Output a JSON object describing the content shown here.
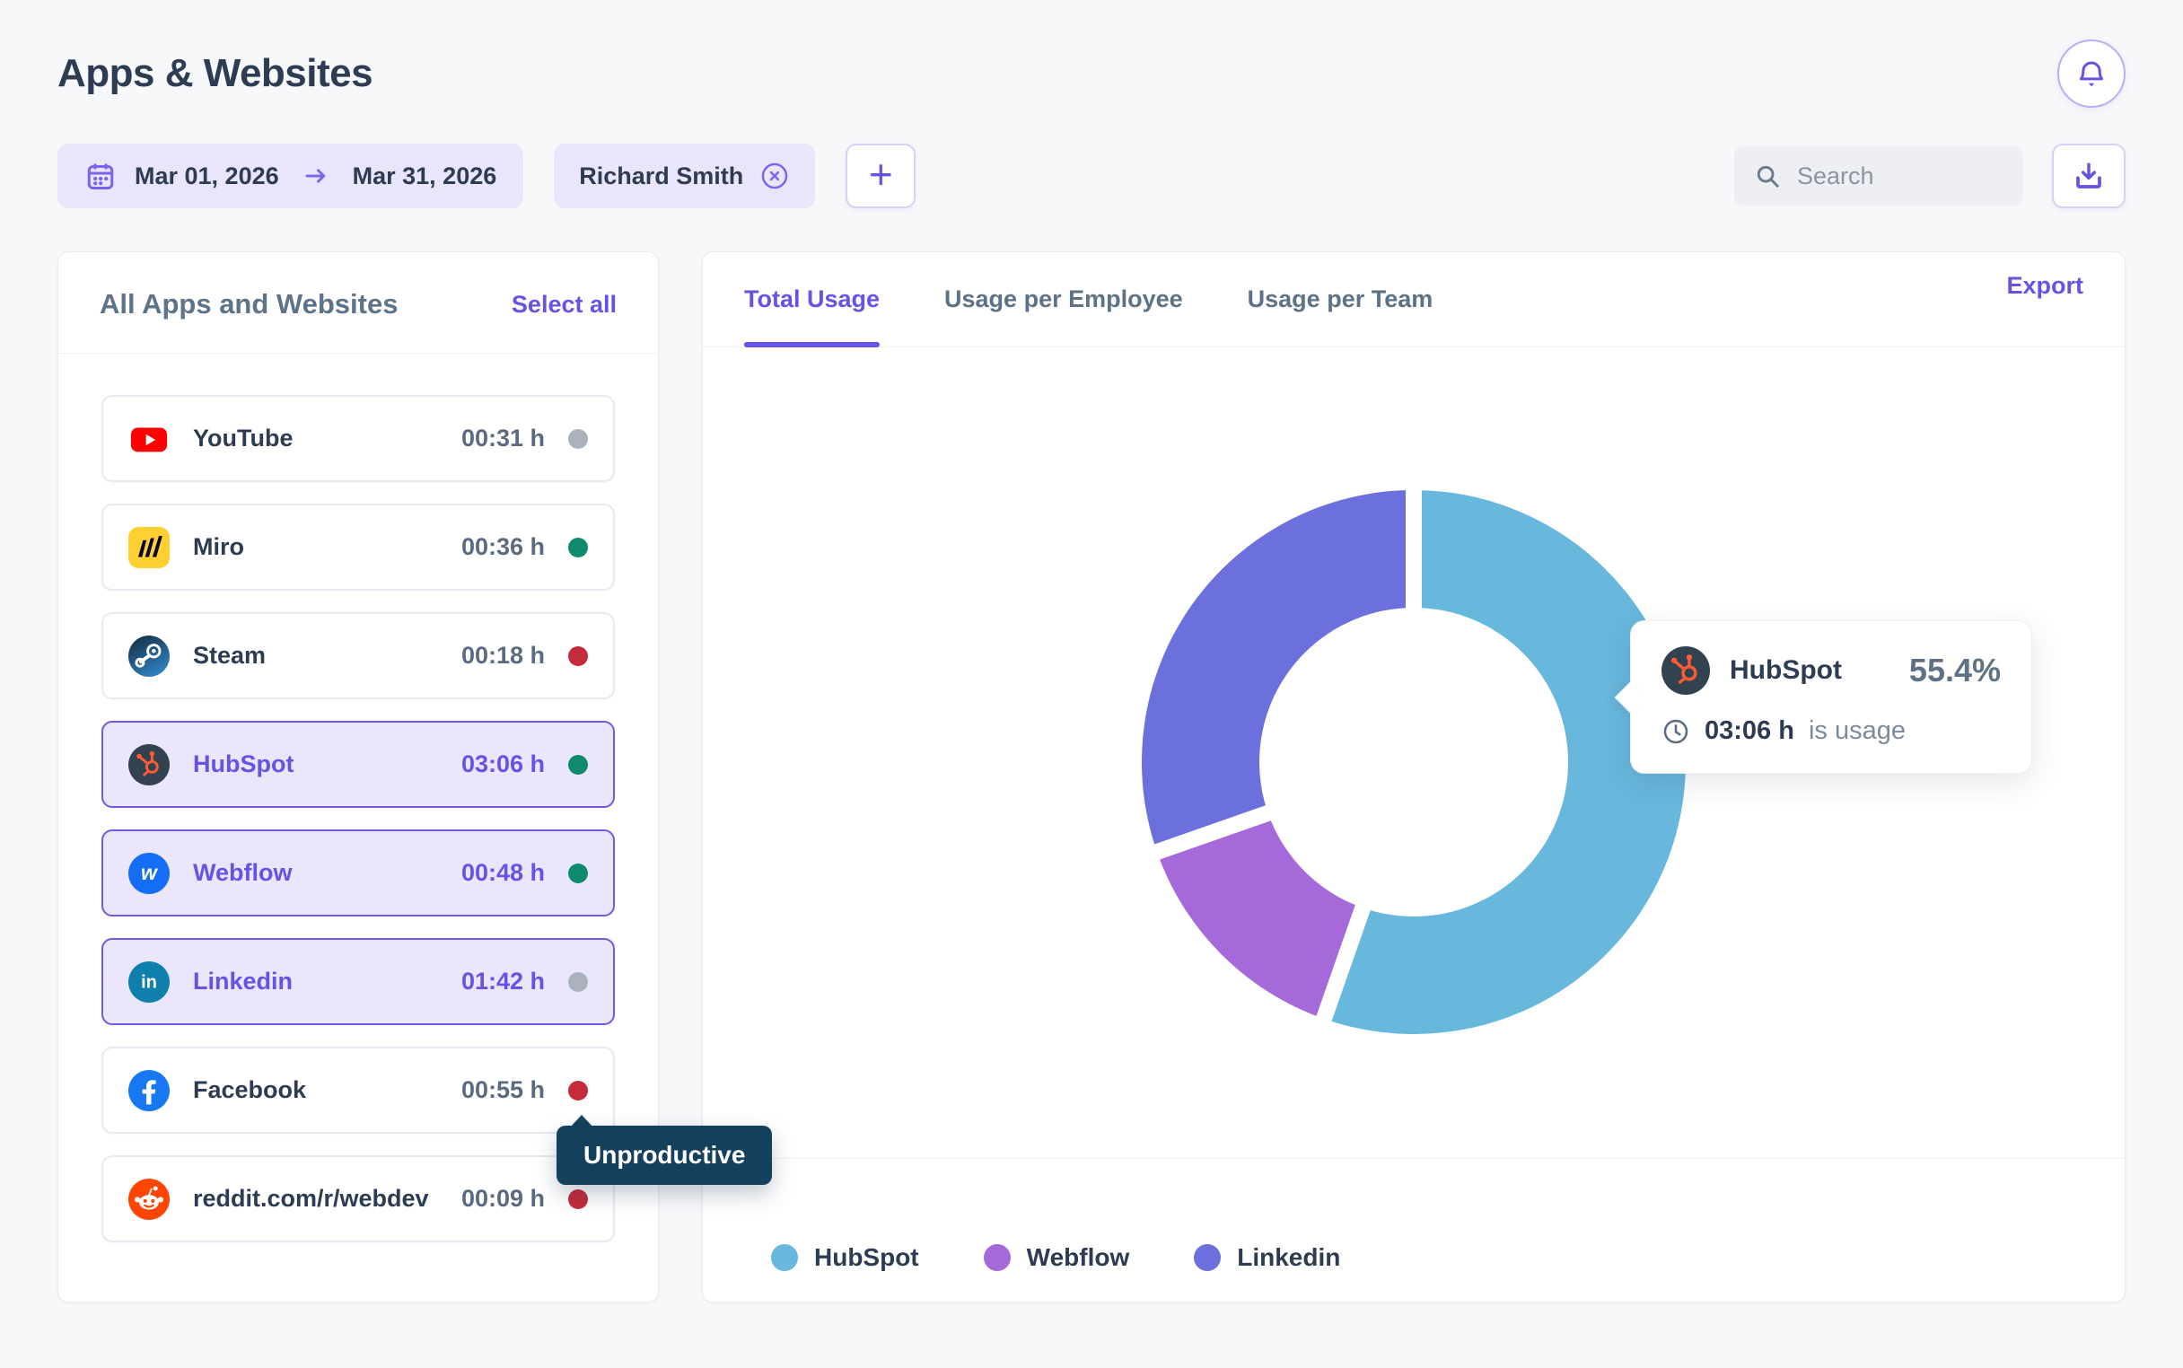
{
  "header": {
    "title": "Apps & Websites"
  },
  "filters": {
    "date_start": "Mar 01, 2026",
    "date_end": "Mar 31, 2026",
    "employee_chip": "Richard Smith",
    "add_label": "+",
    "search_placeholder": "Search"
  },
  "apps_panel": {
    "title": "All Apps and Websites",
    "select_all_label": "Select all",
    "status_colors": {
      "productive": "#0e8a6e",
      "unproductive": "#c62b3c",
      "neutral": "#a9b2bd"
    },
    "apps": [
      {
        "name": "YouTube",
        "time": "00:31 h",
        "status": "neutral",
        "selected": false,
        "icon": "youtube-icon"
      },
      {
        "name": "Miro",
        "time": "00:36 h",
        "status": "productive",
        "selected": false,
        "icon": "miro-icon"
      },
      {
        "name": "Steam",
        "time": "00:18 h",
        "status": "unproductive",
        "selected": false,
        "icon": "steam-icon"
      },
      {
        "name": "HubSpot",
        "time": "03:06 h",
        "status": "productive",
        "selected": true,
        "icon": "hubspot-icon"
      },
      {
        "name": "Webflow",
        "time": "00:48 h",
        "status": "productive",
        "selected": true,
        "icon": "webflow-icon"
      },
      {
        "name": "Linkedin",
        "time": "01:42 h",
        "status": "neutral",
        "selected": true,
        "icon": "linkedin-icon"
      },
      {
        "name": "Facebook",
        "time": "00:55 h",
        "status": "unproductive",
        "selected": false,
        "icon": "facebook-icon"
      },
      {
        "name": "reddit.com/r/webdev",
        "time": "00:09 h",
        "status": "unproductive",
        "selected": false,
        "icon": "reddit-icon"
      }
    ],
    "status_tooltip": {
      "label": "Unproductive",
      "for_app": "Facebook"
    }
  },
  "usage_panel": {
    "tabs": [
      {
        "label": "Total Usage",
        "active": true
      },
      {
        "label": "Usage per Employee",
        "active": false
      },
      {
        "label": "Usage per Team",
        "active": false
      }
    ],
    "export_label": "Export",
    "tooltip": {
      "app": "HubSpot",
      "percent": "55.4%",
      "time": "03:06 h",
      "suffix": "is usage",
      "icon": "hubspot-icon",
      "clock_icon": "clock-icon"
    }
  },
  "chart_data": {
    "type": "pie",
    "donut": true,
    "title": "Total Usage",
    "legend_position": "bottom",
    "start_angle_deg": 0,
    "series": [
      {
        "name": "HubSpot",
        "value_minutes": 186,
        "percent": 55.4,
        "time_label": "03:06 h",
        "color": "#68b7dd"
      },
      {
        "name": "Webflow",
        "value_minutes": 48,
        "percent": 14.3,
        "time_label": "00:48 h",
        "color": "#a569da"
      },
      {
        "name": "Linkedin",
        "value_minutes": 102,
        "percent": 30.4,
        "time_label": "01:42 h",
        "color": "#6b70dc"
      }
    ]
  },
  "colors": {
    "accent": "#6553e6",
    "lavender": "#e9e5fb",
    "selected_border": "#6e5ae8",
    "page_bg": "#f7f8fa",
    "text_dark": "#2d3c52",
    "text_slate": "#5d7389",
    "tooltip_navy": "#14405e"
  }
}
